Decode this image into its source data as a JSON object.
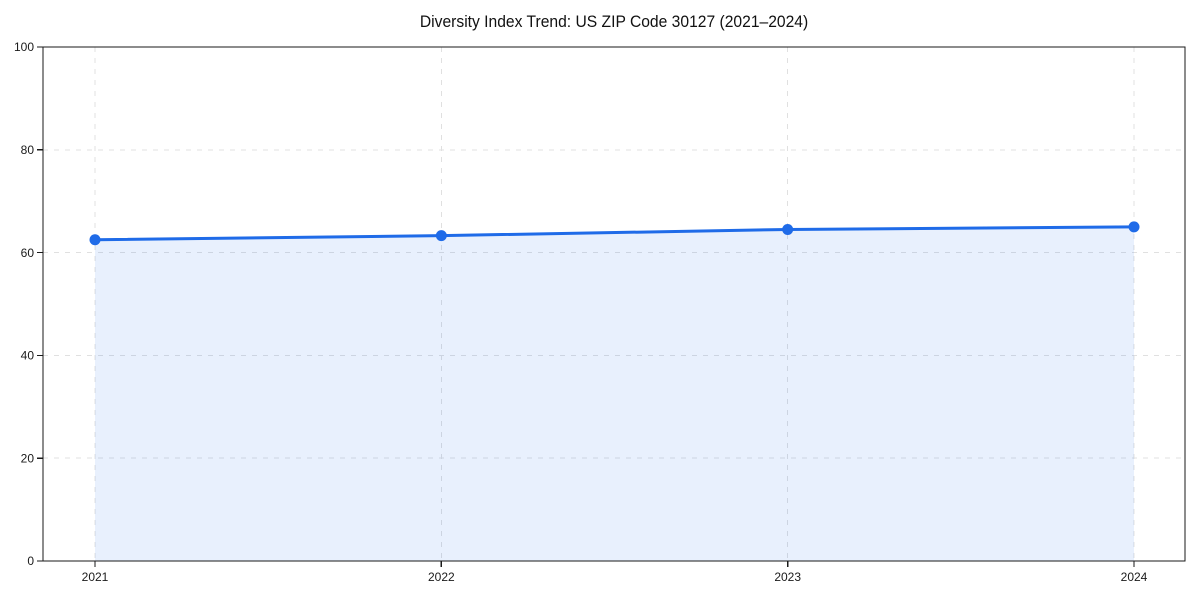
{
  "page": {
    "background": "#ffffff"
  },
  "chart_data": {
    "type": "area",
    "title": "Diversity Index Trend: US ZIP Code 30127 (2021–2024)",
    "categories": [
      "2021",
      "2022",
      "2023",
      "2024"
    ],
    "values": [
      62.5,
      63.3,
      64.5,
      65.0
    ],
    "xlabel": "",
    "ylabel": "",
    "ylim": [
      0,
      100
    ],
    "yticks": [
      0,
      20,
      40,
      60,
      80,
      100
    ],
    "grid": "dashed-both-axes",
    "legend": "none",
    "colors": {
      "line": "#1f6be8",
      "marker": "#1f6be8",
      "area_fill": "rgba(31,107,232,0.10)",
      "gridline": "#e0e0e0",
      "axis": "#1a1a1a",
      "tick_text": "#1a1a1a"
    }
  }
}
